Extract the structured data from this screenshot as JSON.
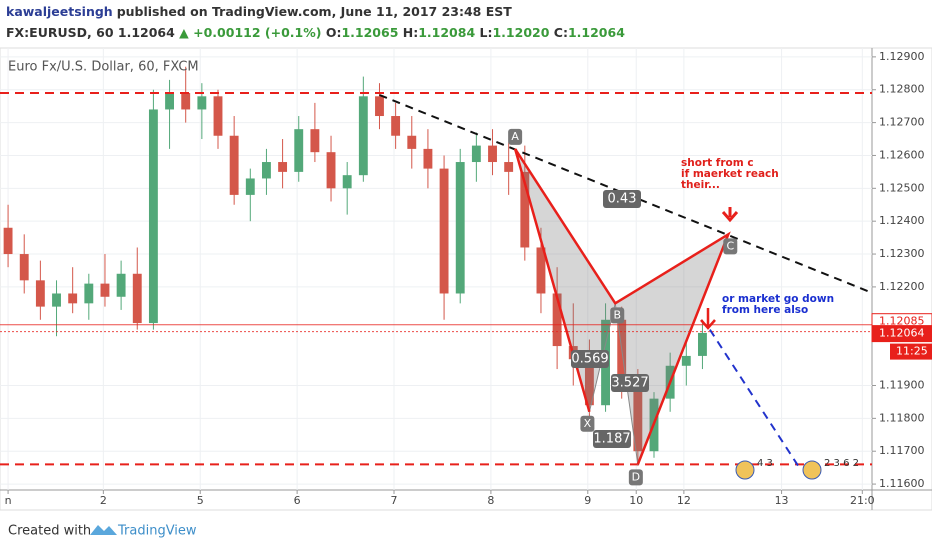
{
  "header": {
    "author": "kawaljeetsingh",
    "published": "published on TradingView.com, June 11, 2017 23:48 EST",
    "symbol": "FX:EURUSD, 60",
    "last": "1.12064",
    "change": "▲ +0.00112 (+0.1%)",
    "o_label": "O:",
    "o": "1.12065",
    "h_label": "H:",
    "h": "1.12084",
    "l_label": "L:",
    "l": "1.12020",
    "c_label": "C:",
    "c": "1.12064"
  },
  "chart_data": {
    "type": "candlestick",
    "legend": "Euro Fx/U.S. Dollar, 60, FXCM",
    "up_color": "#53a879",
    "down_color": "#d4574a",
    "open": [
      1.1238,
      1.123,
      1.1222,
      1.1214,
      1.1218,
      1.1215,
      1.1221,
      1.1217,
      1.1224,
      1.1209,
      1.1274,
      1.1279,
      1.1274,
      1.1278,
      1.1266,
      1.1248,
      1.1253,
      1.1258,
      1.1255,
      1.1268,
      1.1261,
      1.125,
      1.1254,
      1.1278,
      1.1272,
      1.1266,
      1.1262,
      1.1256,
      1.1218,
      1.1258,
      1.1263,
      1.1258,
      1.1255,
      1.1232,
      1.1218,
      1.1202,
      1.1198,
      1.1184,
      1.121,
      1.119,
      1.117,
      1.1186,
      1.1196,
      1.1199
    ],
    "high": [
      1.1245,
      1.1236,
      1.1228,
      1.1222,
      1.1226,
      1.1224,
      1.123,
      1.1228,
      1.1232,
      1.128,
      1.1283,
      1.1287,
      1.1282,
      1.128,
      1.1272,
      1.1256,
      1.1262,
      1.1265,
      1.1272,
      1.1276,
      1.1266,
      1.1258,
      1.1284,
      1.1282,
      1.1276,
      1.1272,
      1.1268,
      1.126,
      1.1262,
      1.1267,
      1.1268,
      1.1264,
      1.1263,
      1.1238,
      1.1226,
      1.1215,
      1.1204,
      1.1215,
      1.1214,
      1.1195,
      1.1188,
      1.12,
      1.1203,
      1.121
    ],
    "low": [
      1.1226,
      1.1218,
      1.121,
      1.1205,
      1.1212,
      1.121,
      1.1214,
      1.1213,
      1.1207,
      1.1207,
      1.1262,
      1.127,
      1.1265,
      1.1262,
      1.1245,
      1.124,
      1.1248,
      1.125,
      1.1252,
      1.1258,
      1.1246,
      1.1242,
      1.1252,
      1.1268,
      1.1262,
      1.1256,
      1.125,
      1.121,
      1.1215,
      1.1252,
      1.1254,
      1.1248,
      1.1228,
      1.1212,
      1.1195,
      1.119,
      1.118,
      1.1182,
      1.1186,
      1.1166,
      1.1168,
      1.1182,
      1.119,
      1.1195
    ],
    "close": [
      1.123,
      1.1222,
      1.1214,
      1.1218,
      1.1215,
      1.1221,
      1.1217,
      1.1224,
      1.1209,
      1.1274,
      1.1279,
      1.1274,
      1.1278,
      1.1266,
      1.1248,
      1.1253,
      1.1258,
      1.1255,
      1.1268,
      1.1261,
      1.125,
      1.1254,
      1.1278,
      1.1272,
      1.1266,
      1.1262,
      1.1256,
      1.1218,
      1.1258,
      1.1263,
      1.1258,
      1.1255,
      1.1232,
      1.1218,
      1.1202,
      1.1198,
      1.1184,
      1.121,
      1.119,
      1.117,
      1.1186,
      1.1196,
      1.1199,
      1.1206
    ],
    "xlim": [
      0,
      54
    ],
    "xticks": [
      {
        "value": 0.5,
        "label": "n"
      },
      {
        "value": 6.4,
        "label": "2"
      },
      {
        "value": 12.4,
        "label": "5"
      },
      {
        "value": 18.4,
        "label": "6"
      },
      {
        "value": 24.4,
        "label": "7"
      },
      {
        "value": 30.4,
        "label": "8"
      },
      {
        "value": 36.4,
        "label": "9"
      },
      {
        "value": 39.4,
        "label": "10"
      },
      {
        "value": 42.35,
        "label": "12"
      },
      {
        "value": 48.4,
        "label": "13"
      },
      {
        "value": 53.4,
        "label": "21:0"
      }
    ],
    "ylim": [
      1.11582,
      1.12927
    ],
    "yticks": [
      {
        "value": 1.129,
        "label": "1.12900"
      },
      {
        "value": 1.128,
        "label": "1.12800"
      },
      {
        "value": 1.127,
        "label": "1.12700"
      },
      {
        "value": 1.126,
        "label": "1.12600"
      },
      {
        "value": 1.125,
        "label": "1.12500"
      },
      {
        "value": 1.124,
        "label": "1.12400"
      },
      {
        "value": 1.123,
        "label": "1.12300"
      },
      {
        "value": 1.122,
        "label": "1.12200"
      },
      {
        "value": 1.119,
        "label": "1.11900"
      },
      {
        "value": 1.118,
        "label": "1.11800"
      },
      {
        "value": 1.117,
        "label": "1.11700"
      },
      {
        "value": 1.116,
        "label": "1.11600"
      }
    ],
    "grid": true,
    "price_lines": [
      {
        "value": 1.12085,
        "label": "1.12085"
      },
      {
        "value": 1.12064,
        "label": "1.12064"
      }
    ],
    "countdown": "11:25",
    "levels": [
      1.1279,
      1.1166
    ],
    "trendline": {
      "x": [
        23.5,
        54
      ],
      "y": [
        1.12784,
        1.12182
      ]
    },
    "projection": {
      "x": [
        43.96,
        49.5
      ],
      "y": [
        1.1207,
        1.1165
      ]
    },
    "pattern": {
      "labels": [
        "X",
        "A",
        "B",
        "C",
        "D"
      ],
      "x": [
        36.5,
        31.9,
        38.1,
        45.1,
        39.5
      ],
      "y": [
        1.1182,
        1.1262,
        1.1215,
        1.1236,
        1.1166
      ],
      "ratios": [
        "0.43",
        "0.569",
        "3.527",
        "1.187"
      ]
    },
    "annotations": [
      {
        "lines": [
          "short from c",
          "if maerket reach",
          "their..."
        ],
        "color": "#e0201b"
      },
      {
        "lines": [
          "or market go down",
          "from here also"
        ],
        "color": "#1a2fd0"
      }
    ],
    "events": [
      "4 3",
      "2 3 6 2"
    ]
  },
  "footer": {
    "created": "Created with",
    "brand": "TradingView"
  }
}
